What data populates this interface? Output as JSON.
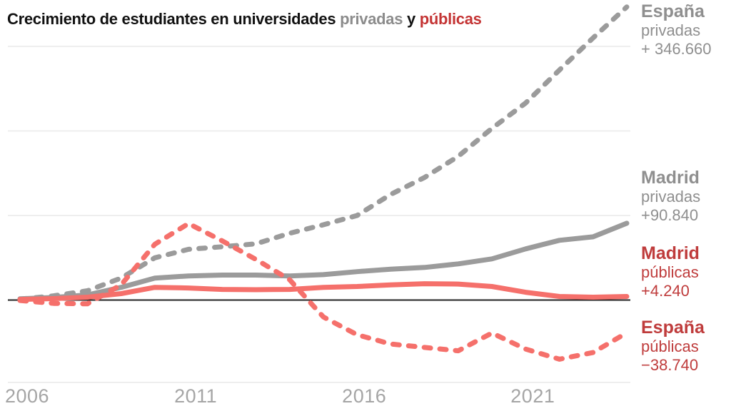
{
  "title": {
    "part1": "Crecimiento de estudiantes en universidades ",
    "highlight_privadas": "privadas",
    "part2": " y ",
    "highlight_publicas": "públicas"
  },
  "colors": {
    "line_gray": "#9b9b9b",
    "line_red": "#f5706b",
    "text_gray": "#8f8f8f",
    "text_red": "#bf3c3c",
    "title_red": "#c43434",
    "title_gray": "#8c8c8c",
    "gridline": "#e9e9e9",
    "zero_axis": "#222222",
    "tick_text": "#a5a5a5"
  },
  "annotations": [
    {
      "region": "España",
      "sector": "privadas",
      "value": "+ 346.660",
      "color_key": "gray"
    },
    {
      "region": "Madrid",
      "sector": "privadas",
      "value": "+90.840",
      "color_key": "gray"
    },
    {
      "region": "Madrid",
      "sector": "públicas",
      "value": "+4.240",
      "color_key": "red"
    },
    {
      "region": "España",
      "sector": "públicas",
      "value": "−38.740",
      "color_key": "red"
    }
  ],
  "chart_data": {
    "type": "line",
    "x": [
      2006,
      2007,
      2008,
      2009,
      2010,
      2011,
      2012,
      2013,
      2014,
      2015,
      2016,
      2017,
      2018,
      2019,
      2020,
      2021,
      2022,
      2023,
      2024
    ],
    "x_ticks": [
      "2006",
      "2011",
      "2016",
      "2021"
    ],
    "x_tick_years": [
      2006,
      2011,
      2016,
      2021
    ],
    "ylim": [
      -100000,
      360000
    ],
    "gridline_values": [
      300000,
      200000,
      100000
    ],
    "zero_line": 0,
    "grid": true,
    "legend_position": "right",
    "series": [
      {
        "name": "España privadas",
        "style": "dashed",
        "color": "#9b9b9b",
        "values": [
          1000,
          5000,
          11000,
          26000,
          50000,
          60000,
          63000,
          66500,
          79000,
          89000,
          100000,
          125000,
          145000,
          170000,
          203000,
          233000,
          272000,
          310000,
          346660
        ],
        "end_label": "+ 346.660"
      },
      {
        "name": "Madrid privadas",
        "style": "solid",
        "color": "#9b9b9b",
        "values": [
          1500,
          3000,
          6000,
          15000,
          26000,
          28500,
          29500,
          29500,
          28500,
          30000,
          33600,
          36500,
          38600,
          42800,
          48700,
          60500,
          70600,
          74800,
          90840
        ],
        "end_label": "+90.840"
      },
      {
        "name": "Madrid públicas",
        "style": "solid",
        "color": "#f5706b",
        "values": [
          800,
          1700,
          3400,
          7600,
          15000,
          14300,
          12600,
          12200,
          12600,
          15000,
          16000,
          18000,
          19300,
          18900,
          16000,
          9200,
          4200,
          3400,
          4240
        ],
        "end_label": "+4.240"
      },
      {
        "name": "España públicas",
        "style": "dashed",
        "color": "#f5706b",
        "values": [
          -500,
          -4000,
          -4500,
          18000,
          66000,
          90500,
          70000,
          48000,
          24000,
          -20000,
          -41000,
          -52000,
          -56000,
          -60000,
          -39000,
          -58000,
          -70000,
          -62000,
          -38740
        ],
        "end_label": "−38.740"
      }
    ]
  }
}
